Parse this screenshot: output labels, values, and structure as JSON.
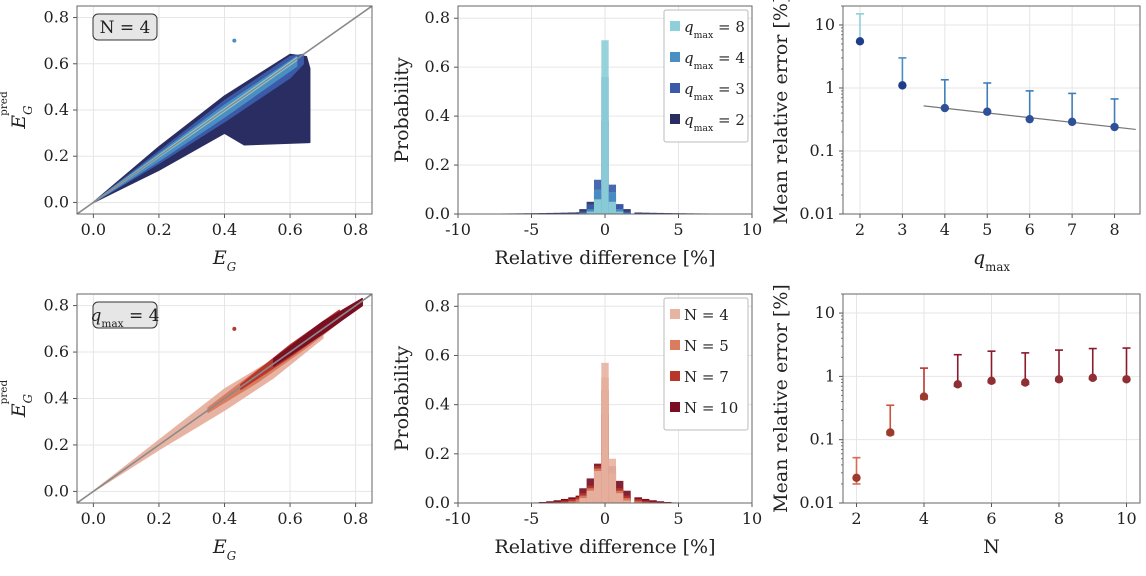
{
  "colors": {
    "blue": [
      "#2a2d62",
      "#3b5ba8",
      "#4b8fc2",
      "#8fcfd9"
    ],
    "red": [
      "#7a0f24",
      "#b8362a",
      "#d97c60",
      "#e7b3a3"
    ],
    "identity_line": "#8a8a8a",
    "fit_line": "#777777"
  },
  "chart_data": [
    {
      "type": "scatter",
      "panel": "top-left",
      "badge": "N = 4",
      "xlabel": "E_G",
      "ylabel": "E_G^pred",
      "xlim": [
        -0.05,
        0.85
      ],
      "ylim": [
        -0.05,
        0.85
      ],
      "xticks": [
        "0.0",
        "0.2",
        "0.4",
        "0.6",
        "0.8"
      ],
      "yticks": [
        "0.0",
        "0.2",
        "0.4",
        "0.6",
        "0.8"
      ],
      "outlier": [
        0.43,
        0.7
      ],
      "series": [
        {
          "name": "q_max = 2",
          "upper": [
            [
              0.0,
              0.0
            ],
            [
              0.2,
              0.24
            ],
            [
              0.4,
              0.46
            ],
            [
              0.6,
              0.64
            ],
            [
              0.65,
              0.63
            ]
          ],
          "lower": [
            [
              0.0,
              0.0
            ],
            [
              0.2,
              0.14
            ],
            [
              0.4,
              0.3
            ],
            [
              0.46,
              0.25
            ],
            [
              0.66,
              0.26
            ],
            [
              0.66,
              0.58
            ]
          ]
        },
        {
          "name": "q_max = 3",
          "upper": [
            [
              0.0,
              0.0
            ],
            [
              0.2,
              0.22
            ],
            [
              0.4,
              0.44
            ],
            [
              0.6,
              0.63
            ],
            [
              0.64,
              0.64
            ]
          ],
          "lower": [
            [
              0.0,
              0.0
            ],
            [
              0.2,
              0.17
            ],
            [
              0.4,
              0.35
            ],
            [
              0.6,
              0.54
            ],
            [
              0.64,
              0.6
            ]
          ]
        },
        {
          "name": "q_max = 4",
          "upper": [
            [
              0.0,
              0.0
            ],
            [
              0.2,
              0.21
            ],
            [
              0.4,
              0.42
            ],
            [
              0.62,
              0.63
            ]
          ],
          "lower": [
            [
              0.0,
              0.0
            ],
            [
              0.2,
              0.18
            ],
            [
              0.4,
              0.37
            ],
            [
              0.62,
              0.59
            ]
          ]
        },
        {
          "name": "q_max = 8",
          "upper": [
            [
              0.0,
              0.0
            ],
            [
              0.3,
              0.305
            ],
            [
              0.62,
              0.625
            ]
          ],
          "lower": [
            [
              0.0,
              0.0
            ],
            [
              0.3,
              0.295
            ],
            [
              0.62,
              0.615
            ]
          ]
        }
      ]
    },
    {
      "type": "bar",
      "panel": "top-middle",
      "xlabel": "Relative difference [%]",
      "ylabel": "Probability",
      "xlim": [
        -10,
        10
      ],
      "ylim": [
        0,
        0.85
      ],
      "xticks": [
        "-10",
        "-5",
        "0",
        "5",
        "10"
      ],
      "yticks": [
        "0.0",
        "0.2",
        "0.4",
        "0.6",
        "0.8"
      ],
      "bin_centers": [
        -1.5,
        -1.0,
        -0.5,
        0.0,
        0.5,
        1.0,
        1.5
      ],
      "legend": [
        "q_max = 8",
        "q_max = 4",
        "q_max = 3",
        "q_max = 2"
      ],
      "legend_placement": "top-right",
      "series": [
        {
          "name": "q_max = 2",
          "values": [
            0.02,
            0.05,
            0.09,
            0.11,
            0.08,
            0.04,
            0.02
          ],
          "tail": 0.01
        },
        {
          "name": "q_max = 3",
          "values": [
            0.01,
            0.04,
            0.14,
            0.38,
            0.12,
            0.04,
            0.01
          ],
          "tail": 0.004
        },
        {
          "name": "q_max = 4",
          "values": [
            0.005,
            0.02,
            0.1,
            0.56,
            0.09,
            0.02,
            0.005
          ],
          "tail": 0.002
        },
        {
          "name": "q_max = 8",
          "values": [
            0.0,
            0.01,
            0.06,
            0.71,
            0.05,
            0.01,
            0.0
          ],
          "tail": 0.0
        }
      ]
    },
    {
      "type": "scatter",
      "panel": "top-right",
      "xlabel": "q_max",
      "ylabel": "Mean relative error [%]",
      "yscale": "log",
      "xlim": [
        1.6,
        8.6
      ],
      "ylim": [
        0.01,
        20
      ],
      "xticks": [
        "2",
        "3",
        "4",
        "5",
        "6",
        "7",
        "8"
      ],
      "yticks": [
        "0.01",
        "0.1",
        "1",
        "10"
      ],
      "x": [
        2,
        3,
        4,
        5,
        6,
        7,
        8
      ],
      "values": [
        5.5,
        1.1,
        0.48,
        0.42,
        0.32,
        0.29,
        0.24
      ],
      "err_upper": [
        15,
        3.0,
        1.35,
        1.2,
        0.9,
        0.82,
        0.67
      ],
      "fit_line": [
        [
          3.5,
          0.52
        ],
        [
          8.5,
          0.22
        ]
      ]
    },
    {
      "type": "scatter",
      "panel": "bottom-left",
      "badge": "q_max = 4",
      "xlabel": "E_G",
      "ylabel": "E_G^pred",
      "xlim": [
        -0.05,
        0.85
      ],
      "ylim": [
        -0.05,
        0.85
      ],
      "xticks": [
        "0.0",
        "0.2",
        "0.4",
        "0.6",
        "0.8"
      ],
      "yticks": [
        "0.0",
        "0.2",
        "0.4",
        "0.6",
        "0.8"
      ],
      "outlier": [
        0.43,
        0.7
      ],
      "series": [
        {
          "name": "N = 4",
          "upper": [
            [
              0.0,
              0.0
            ],
            [
              0.2,
              0.22
            ],
            [
              0.4,
              0.44
            ],
            [
              0.6,
              0.61
            ],
            [
              0.7,
              0.7
            ]
          ],
          "lower": [
            [
              0.0,
              0.0
            ],
            [
              0.2,
              0.18
            ],
            [
              0.4,
              0.35
            ],
            [
              0.55,
              0.49
            ],
            [
              0.7,
              0.66
            ]
          ]
        },
        {
          "name": "N = 5",
          "upper": [
            [
              0.35,
              0.36
            ],
            [
              0.5,
              0.52
            ],
            [
              0.65,
              0.67
            ],
            [
              0.75,
              0.77
            ]
          ],
          "lower": [
            [
              0.35,
              0.34
            ],
            [
              0.5,
              0.47
            ],
            [
              0.65,
              0.62
            ],
            [
              0.75,
              0.73
            ]
          ]
        },
        {
          "name": "N = 7",
          "upper": [
            [
              0.45,
              0.46
            ],
            [
              0.6,
              0.63
            ],
            [
              0.75,
              0.78
            ]
          ],
          "lower": [
            [
              0.45,
              0.44
            ],
            [
              0.6,
              0.58
            ],
            [
              0.75,
              0.73
            ]
          ]
        },
        {
          "name": "N = 10",
          "upper": [
            [
              0.55,
              0.57
            ],
            [
              0.7,
              0.73
            ],
            [
              0.82,
              0.83
            ]
          ],
          "lower": [
            [
              0.55,
              0.54
            ],
            [
              0.7,
              0.68
            ],
            [
              0.82,
              0.8
            ]
          ]
        }
      ]
    },
    {
      "type": "bar",
      "panel": "bottom-middle",
      "xlabel": "Relative difference [%]",
      "ylabel": "Probability",
      "xlim": [
        -10,
        10
      ],
      "ylim": [
        0,
        0.85
      ],
      "xticks": [
        "-10",
        "-5",
        "0",
        "5",
        "10"
      ],
      "yticks": [
        "0.0",
        "0.2",
        "0.4",
        "0.6",
        "0.8"
      ],
      "bin_centers": [
        -1.5,
        -1.0,
        -0.5,
        0.0,
        0.5,
        1.0,
        1.5
      ],
      "legend": [
        "N = 4",
        "N = 5",
        "N = 7",
        "N = 10"
      ],
      "legend_placement": "top-right",
      "series": [
        {
          "name": "N = 10",
          "values": [
            0.06,
            0.1,
            0.16,
            0.36,
            0.15,
            0.09,
            0.05
          ],
          "spread": 5
        },
        {
          "name": "N = 7",
          "values": [
            0.04,
            0.07,
            0.15,
            0.46,
            0.13,
            0.06,
            0.03
          ],
          "spread": 4
        },
        {
          "name": "N = 5",
          "values": [
            0.03,
            0.06,
            0.14,
            0.51,
            0.12,
            0.05,
            0.02
          ],
          "spread": 3
        },
        {
          "name": "N = 4",
          "values": [
            0.02,
            0.05,
            0.13,
            0.57,
            0.18,
            0.04,
            0.01
          ],
          "spread": 2
        }
      ]
    },
    {
      "type": "scatter",
      "panel": "bottom-right",
      "xlabel": "N",
      "ylabel": "Mean relative error [%]",
      "yscale": "log",
      "xlim": [
        1.6,
        10.4
      ],
      "ylim": [
        0.01,
        20
      ],
      "xticks": [
        "2",
        "4",
        "6",
        "8",
        "10"
      ],
      "yticks": [
        "0.01",
        "0.1",
        "1",
        "10"
      ],
      "x": [
        2,
        3,
        4,
        5,
        6,
        7,
        8,
        9,
        10
      ],
      "values": [
        0.025,
        0.13,
        0.48,
        0.75,
        0.85,
        0.8,
        0.9,
        0.95,
        0.9
      ],
      "err_upper": [
        0.052,
        0.35,
        1.35,
        2.2,
        2.5,
        2.35,
        2.6,
        2.75,
        2.8
      ],
      "err_lower": [
        0.02,
        0.12,
        0.44,
        0.7,
        0.8,
        0.75,
        0.85,
        0.9,
        0.86
      ]
    }
  ]
}
